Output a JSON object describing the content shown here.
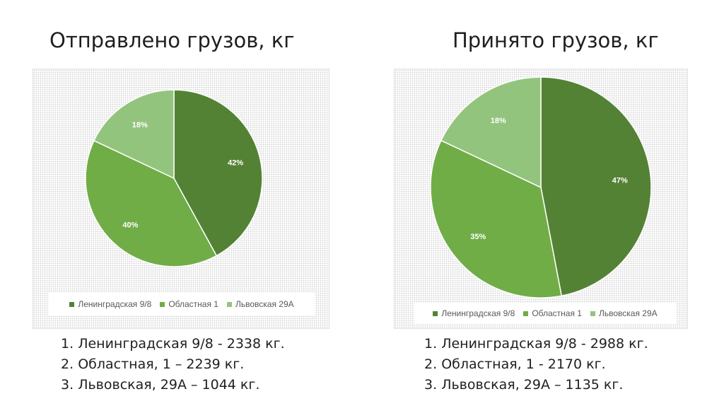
{
  "colors": {
    "leningradskaya": "#548235",
    "oblastnaya": "#70AD47",
    "lvovskaya": "#93C47D"
  },
  "left": {
    "title": "Отправлено грузов, кг",
    "list": [
      {
        "num": "1.",
        "text": "Ленинградская 9/8 - 2338 кг."
      },
      {
        "num": "2.",
        "text": "Областная, 1 – 2239 кг."
      },
      {
        "num": "3.",
        "text": "Львовская, 29А – 1044 кг."
      }
    ]
  },
  "right": {
    "title": "Принято грузов, кг",
    "list": [
      {
        "num": "1.",
        "text": "Ленинградская 9/8 - 2988 кг."
      },
      {
        "num": "2.",
        "text": "Областная, 1 - 2170 кг."
      },
      {
        "num": "3.",
        "text": "Львовская, 29А – 1135 кг."
      }
    ]
  },
  "chart_data": [
    {
      "type": "pie",
      "title": "Отправлено грузов, кг",
      "categories": [
        "Ленинградская 9/8",
        "Областная 1",
        "Львовская 29А"
      ],
      "values": [
        42,
        40,
        18
      ],
      "labels": [
        "42%",
        "40%",
        "18%"
      ],
      "legend_placement": "bottom"
    },
    {
      "type": "pie",
      "title": "Принято грузов, кг",
      "categories": [
        "Ленинградская 9/8",
        "Областная 1",
        "Львовская 29А"
      ],
      "values": [
        47,
        35,
        18
      ],
      "labels": [
        "47%",
        "35%",
        "18%"
      ],
      "legend_placement": "bottom"
    }
  ]
}
